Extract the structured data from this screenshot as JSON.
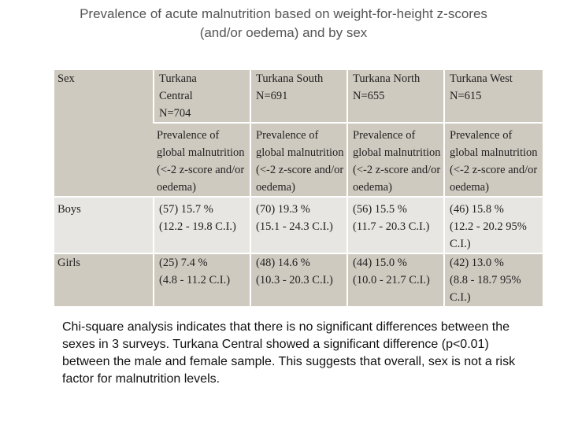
{
  "title": {
    "line1": "Prevalence of acute malnutrition based on weight-for-height z-scores",
    "line2": "(and/or oedema) and by sex"
  },
  "table": {
    "headers": [
      {
        "line1": "Turkana",
        "line2": "Central",
        "line3": "N=704"
      },
      {
        "line1": "Turkana South",
        "line2": "N=691",
        "line3": ""
      },
      {
        "line1": "Turkana North",
        "line2": "N=655",
        "line3": ""
      },
      {
        "line1": "Turkana West",
        "line2": "N=615",
        "line3": ""
      }
    ],
    "sex_label": "Sex",
    "measure": "Prevalence of global malnutrition (<-2 z-score and/or oedema)",
    "rows": [
      {
        "label": "Boys",
        "cells": [
          {
            "value": "(57) 15.7 %",
            "ci": "(12.2 - 19.8 C.I.)"
          },
          {
            "value": "(70) 19.3 %",
            "ci": "(15.1 - 24.3 C.I.)"
          },
          {
            "value": "(56) 15.5 %",
            "ci": "(11.7 - 20.3 C.I.)"
          },
          {
            "value": "(46) 15.8 %",
            "ci": "(12.2 - 20.2 95% C.I.)"
          }
        ]
      },
      {
        "label": "Girls",
        "cells": [
          {
            "value": "(25) 7.4 %",
            "ci": "(4.8 - 11.2 C.I.)"
          },
          {
            "value": "(48) 14.6 %",
            "ci": "(10.3 - 20.3 C.I.)"
          },
          {
            "value": "(44) 15.0 %",
            "ci": "(10.0 - 21.7 C.I.)"
          },
          {
            "value": "(42) 13.0 %",
            "ci": "(8.8 - 18.7 95% C.I.)"
          }
        ]
      }
    ]
  },
  "note": "Chi-square analysis indicates that there is no significant differences between the sexes in 3 surveys. Turkana Central showed a significant difference (p<0.01) between the male and female sample. This suggests that overall, sex is not a risk factor for  malnutrition levels."
}
